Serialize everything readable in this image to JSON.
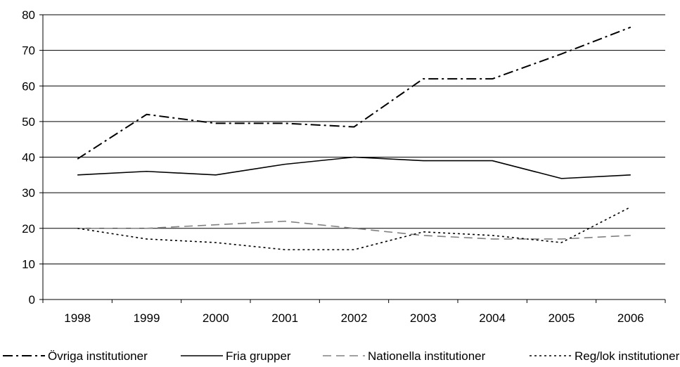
{
  "chart_data": {
    "type": "line",
    "title": "",
    "xlabel": "",
    "ylabel": "",
    "x": [
      "1998",
      "1999",
      "2000",
      "2001",
      "2002",
      "2003",
      "2004",
      "2005",
      "2006"
    ],
    "ylim": [
      0,
      80
    ],
    "yticks": [
      0,
      10,
      20,
      30,
      40,
      50,
      60,
      70,
      80
    ],
    "grid": true,
    "legend_position": "bottom",
    "series": [
      {
        "name": "Övriga institutioner",
        "style": "dash-dot",
        "color": "#000000",
        "values": [
          39.5,
          52,
          49.5,
          49.5,
          48.5,
          62,
          62,
          69,
          76.5
        ]
      },
      {
        "name": "Fria grupper",
        "style": "solid",
        "color": "#000000",
        "values": [
          35,
          36,
          35,
          38,
          40,
          39,
          39,
          34,
          35
        ]
      },
      {
        "name": "Nationella institutioner",
        "style": "dashed",
        "color": "#808080",
        "values": [
          20,
          20,
          21,
          22,
          20,
          18,
          17,
          17,
          18
        ]
      },
      {
        "name": "Reg/lok institutioner",
        "style": "dotted",
        "color": "#000000",
        "values": [
          20,
          17,
          16,
          14,
          14,
          19,
          18,
          16,
          26
        ]
      }
    ]
  }
}
